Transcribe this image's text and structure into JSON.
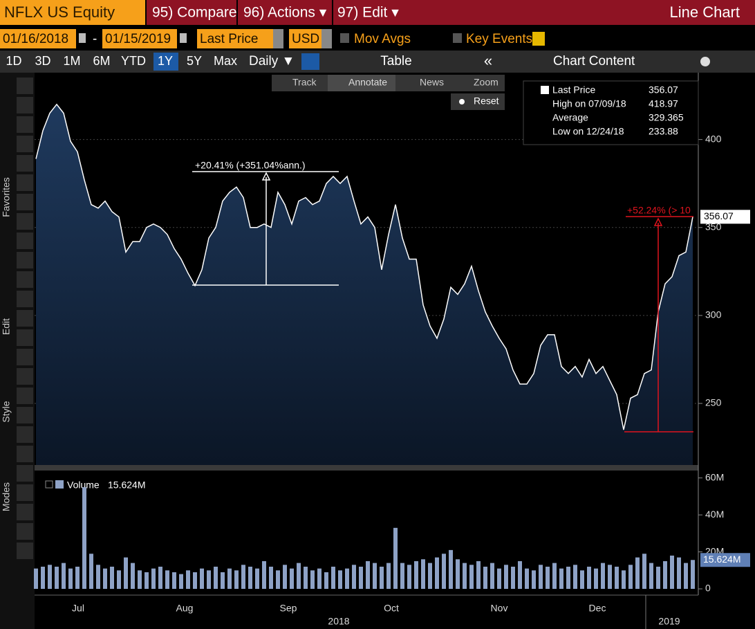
{
  "header": {
    "ticker": "NFLX US Equity",
    "compare": "95) Compare",
    "actions": "96) Actions ▾",
    "edit": "97) Edit ▾",
    "view": "Line Chart"
  },
  "controls": {
    "start": "01/16/2018",
    "dash": "-",
    "end": "01/15/2019",
    "field": "Last Price",
    "currency": "USD",
    "mov_avgs": "Mov Avgs",
    "key_events": "Key Events"
  },
  "periods": [
    "1D",
    "3D",
    "1M",
    "6M",
    "YTD",
    "1Y",
    "5Y",
    "Max"
  ],
  "frequency": "Daily ▼",
  "table": "Table",
  "collapse": "«",
  "chart_content": "Chart Content",
  "chart_tools": [
    "Track",
    "Annotate",
    "News",
    "Zoom"
  ],
  "reset": "Reset",
  "sidebar": [
    "Favorites",
    "Edit",
    "Style",
    "Modes"
  ],
  "info_box": [
    {
      "label": "High on 07/09/18",
      "value": 418.97
    },
    {
      "label": "Average",
      "value": 329.365
    },
    {
      "label": "Low on 12/24/18",
      "value": 233.88
    }
  ],
  "chart_data": [
    {
      "type": "line",
      "series": [
        {
          "name": "Last Price",
          "color": "#ffffff",
          "values": [
            389,
            405,
            415,
            420,
            415,
            399,
            393,
            377,
            363,
            361,
            365,
            359,
            356,
            336,
            342,
            342,
            350,
            352,
            350,
            346,
            338,
            332,
            324,
            317,
            326,
            344,
            350,
            365,
            370,
            373,
            367,
            350,
            350,
            352,
            350,
            370,
            363,
            352,
            365,
            367,
            363,
            365,
            375,
            379,
            375,
            379,
            365,
            352,
            356,
            350,
            326,
            346,
            363,
            344,
            332,
            332,
            306,
            294,
            287,
            298,
            316,
            312,
            318,
            328,
            314,
            302,
            294,
            287,
            281,
            269,
            261,
            261,
            267,
            283,
            289,
            289,
            271,
            267,
            271,
            265,
            275,
            267,
            271,
            263,
            255,
            235,
            253,
            255,
            267,
            269,
            302,
            318,
            322,
            334,
            336,
            356.07
          ]
        }
      ],
      "xlim": [
        0,
        95
      ],
      "ylim": [
        215,
        438
      ],
      "yticks": [
        250,
        300,
        350,
        400
      ],
      "grid": true,
      "annotations": [
        "+20.41% (+351.04%ann.)",
        "+52.24% (> 10"
      ]
    },
    {
      "type": "bar",
      "series": [
        {
          "name": "Volume",
          "color": "#8ea2c6",
          "values": [
            11,
            12,
            13,
            12,
            14,
            11,
            12,
            55,
            19,
            13,
            11,
            12,
            10,
            17,
            14,
            10,
            9,
            11,
            12,
            10,
            9,
            8,
            10,
            9,
            11,
            10,
            12,
            9,
            11,
            10,
            13,
            12,
            11,
            15,
            12,
            10,
            13,
            11,
            14,
            12,
            10,
            11,
            9,
            12,
            10,
            11,
            13,
            12,
            15,
            14,
            12,
            14,
            33,
            14,
            13,
            15,
            16,
            14,
            17,
            19,
            21,
            16,
            14,
            13,
            15,
            12,
            14,
            11,
            13,
            12,
            15,
            11,
            10,
            13,
            12,
            14,
            11,
            12,
            13,
            10,
            12,
            11,
            14,
            13,
            12,
            10,
            13,
            17,
            19,
            14,
            12,
            15,
            18,
            17,
            14,
            15.624
          ],
          "last_label": "15.624M"
        }
      ],
      "xlim": [
        0,
        95
      ],
      "ylim": [
        0,
        64
      ],
      "yticks": [
        0,
        {
          "value": 20,
          "label": "20M"
        },
        {
          "value": 40,
          "label": "40M"
        },
        {
          "value": 60,
          "label": "60M"
        }
      ],
      "xticks": [
        {
          "value": 6.1,
          "label": "Jul"
        },
        {
          "value": 21.5,
          "label": "Aug"
        },
        {
          "value": 36.5,
          "label": "Sep"
        },
        {
          "value": 51.4,
          "label": "Oct"
        },
        {
          "value": 67,
          "label": "Nov"
        },
        {
          "value": 81.2,
          "label": "Dec"
        }
      ],
      "years": [
        {
          "value": 43.8,
          "label": "2018"
        },
        {
          "value": 91.6,
          "label": "2019"
        }
      ]
    }
  ]
}
